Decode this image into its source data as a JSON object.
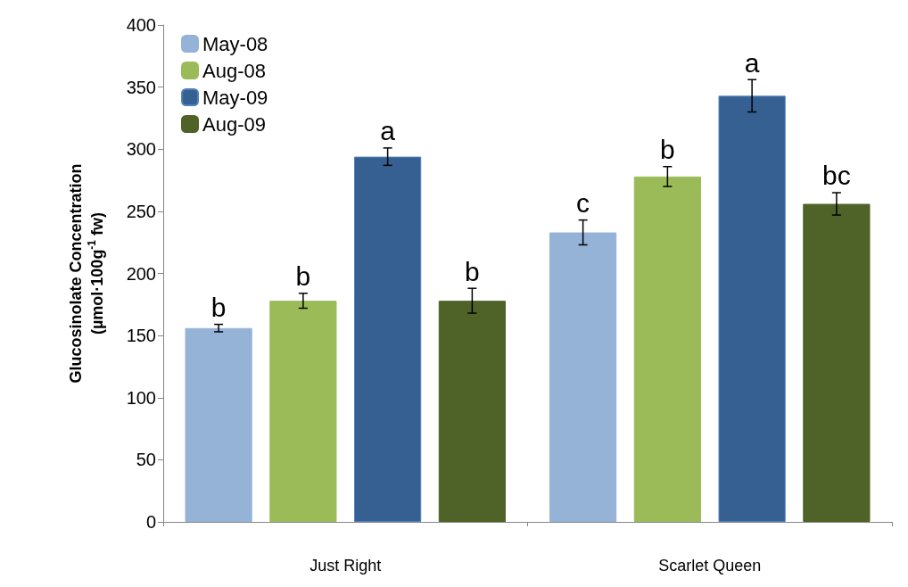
{
  "chart_data": {
    "type": "bar",
    "ylabel": "Glucosinolate Concentration\n(µmol·100g$^{-1}$ fw)",
    "categories": [
      "Just Right",
      "Scarlet Queen"
    ],
    "series": [
      {
        "name": "May-08",
        "color": "#95b3d7",
        "values": [
          156,
          233
        ],
        "errors": [
          3,
          10
        ],
        "value_labels": [
          "b",
          "c"
        ]
      },
      {
        "name": "Aug-08",
        "color": "#9bbb59",
        "values": [
          178,
          278
        ],
        "errors": [
          6,
          8
        ],
        "value_labels": [
          "b",
          "b"
        ]
      },
      {
        "name": "May-09",
        "color": "#376092",
        "values": [
          294,
          343
        ],
        "errors": [
          7,
          13
        ],
        "value_labels": [
          "a",
          "a"
        ]
      },
      {
        "name": "Aug-09",
        "color": "#4f6228",
        "values": [
          178,
          256
        ],
        "errors": [
          10,
          9
        ],
        "value_labels": [
          "b",
          "bc"
        ]
      }
    ],
    "ylim": [
      0,
      400
    ],
    "yticks": [
      0,
      50,
      100,
      150,
      200,
      250,
      300,
      350,
      400
    ],
    "grid": false,
    "legend": "top left"
  }
}
